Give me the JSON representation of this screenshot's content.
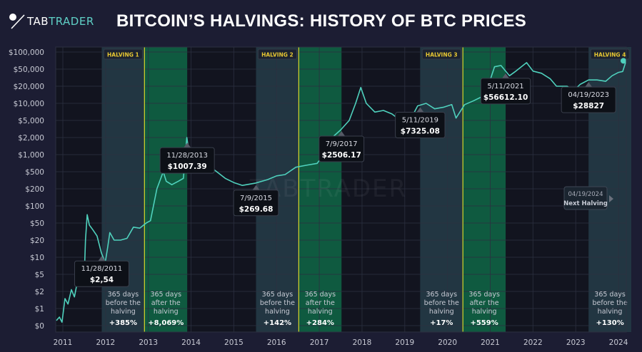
{
  "header": {
    "logo_prefix": "TAB",
    "logo_suffix": "TRADER",
    "title": "BITCOIN’S HALVINGS: HISTORY OF BTC PRICES"
  },
  "watermark": "TABTRADER",
  "colors": {
    "background": "#1c1d33",
    "plot_background": "#12141f",
    "grid": "#2c3040",
    "price_line": "#4fd1bd",
    "before_band": "#223642",
    "after_band": "#0f5a40",
    "halving_line": "#d6d62a",
    "halving_label": "#e8c832"
  },
  "chart_data": {
    "type": "line",
    "title": "BITCOIN’S HALVINGS: HISTORY OF BTC PRICES",
    "xlabel": "",
    "ylabel": "",
    "y_scale": "log (1-2-5 ticks)",
    "grid": true,
    "xlim": [
      2010.83,
      2024.18
    ],
    "x_ticks": [
      "2011",
      "2012",
      "2013",
      "2014",
      "2015",
      "2016",
      "2017",
      "2018",
      "2019",
      "2020",
      "2021",
      "2022",
      "2023",
      "2024"
    ],
    "y_ticks": [
      {
        "value": 0,
        "label": "$0"
      },
      {
        "value": 1,
        "label": "$1"
      },
      {
        "value": 2,
        "label": "$2"
      },
      {
        "value": 5,
        "label": "$5"
      },
      {
        "value": 10,
        "label": "$10"
      },
      {
        "value": 20,
        "label": "$20"
      },
      {
        "value": 50,
        "label": "$50"
      },
      {
        "value": 100,
        "label": "$100"
      },
      {
        "value": 200,
        "label": "$200"
      },
      {
        "value": 500,
        "label": "$500"
      },
      {
        "value": 1000,
        "label": "$1,000"
      },
      {
        "value": 2000,
        "label": "$2,000"
      },
      {
        "value": 5000,
        "label": "$5,000"
      },
      {
        "value": 10000,
        "label": "$10,000"
      },
      {
        "value": 20000,
        "label": "$20,000"
      },
      {
        "value": 50000,
        "label": "$50,000"
      },
      {
        "value": 100000,
        "label": "$100,000"
      }
    ],
    "series": [
      {
        "x": [
          2010.85,
          2010.92,
          2010.98,
          2011.05,
          2011.12,
          2011.2,
          2011.27,
          2011.33,
          2011.4,
          2011.45,
          2011.5,
          2011.53,
          2011.57,
          2011.62,
          2011.7,
          2011.8,
          2011.9,
          2011.99,
          2012.05,
          2012.1,
          2012.2,
          2012.35,
          2012.5,
          2012.65,
          2012.8,
          2012.95,
          2013.05,
          2013.2,
          2013.35,
          2013.42,
          2013.55,
          2013.7,
          2013.82,
          2013.9,
          2013.95,
          2014.05,
          2014.2,
          2014.4,
          2014.6,
          2014.8,
          2015.0,
          2015.2,
          2015.5,
          2015.8,
          2016.0,
          2016.2,
          2016.45,
          2016.7,
          2016.95,
          2017.1,
          2017.3,
          2017.5,
          2017.7,
          2017.85,
          2017.97,
          2018.1,
          2018.3,
          2018.5,
          2018.7,
          2018.9,
          2019.0,
          2019.1,
          2019.3,
          2019.5,
          2019.7,
          2019.9,
          2020.1,
          2020.2,
          2020.4,
          2020.6,
          2020.8,
          2020.95,
          2021.1,
          2021.25,
          2021.45,
          2021.6,
          2021.85,
          2022.0,
          2022.2,
          2022.4,
          2022.55,
          2022.8,
          2022.95,
          2023.1,
          2023.3,
          2023.5,
          2023.7,
          2023.85,
          2024.0,
          2024.1,
          2024.18
        ],
        "y": [
          0.3,
          0.5,
          0.2,
          1.5,
          1.2,
          2.2,
          1.6,
          3,
          6,
          5,
          4,
          20,
          70,
          45,
          35,
          25,
          12,
          8,
          15,
          30,
          20,
          20,
          22,
          40,
          38,
          50,
          55,
          200,
          500,
          300,
          250,
          300,
          350,
          2000,
          1100,
          1000,
          700,
          650,
          500,
          350,
          280,
          240,
          270,
          330,
          400,
          430,
          600,
          650,
          700,
          1000,
          2000,
          3000,
          5000,
          10000,
          19000,
          10000,
          7000,
          7500,
          6500,
          5000,
          4000,
          4500,
          9000,
          10000,
          8000,
          8500,
          9500,
          5500,
          9500,
          11000,
          13000,
          20000,
          55000,
          58000,
          35000,
          45000,
          65000,
          45000,
          40000,
          30000,
          20000,
          20000,
          16500,
          22000,
          28000,
          28000,
          26000,
          35000,
          42000,
          44000,
          70000
        ]
      }
    ],
    "halvings": [
      {
        "label": "HALVING 1",
        "date": 2012.91,
        "before_start": 2011.91,
        "after_end": 2013.91,
        "before_text": [
          "365 days",
          "before the",
          "halving"
        ],
        "before_pct": "+385%",
        "after_text": [
          "365 days",
          "after the",
          "halving"
        ],
        "after_pct": "+8,069%"
      },
      {
        "label": "HALVING 2",
        "date": 2016.52,
        "before_start": 2015.52,
        "after_end": 2017.52,
        "before_text": [
          "365 days",
          "before the",
          "halving"
        ],
        "before_pct": "+142%",
        "after_text": [
          "365 days",
          "after the",
          "halving"
        ],
        "after_pct": "+284%"
      },
      {
        "label": "HALVING 3",
        "date": 2020.36,
        "before_start": 2019.36,
        "after_end": 2021.36,
        "before_text": [
          "365 days",
          "before the",
          "halving"
        ],
        "before_pct": "+17%",
        "after_text": [
          "365 days",
          "after the",
          "halving"
        ],
        "after_pct": "+559%"
      },
      {
        "label": "HALVING 4",
        "date": 2024.3,
        "before_start": 2023.3,
        "after_end": 2024.18,
        "before_text": [
          "365 days",
          "before the",
          "halving"
        ],
        "before_pct": "+130%",
        "after_text": [],
        "after_pct": ""
      }
    ],
    "annotations": [
      {
        "date_label": "11/28/2011",
        "value_label": "$2,54",
        "x": 2011.91
      },
      {
        "date_label": "11/28/2013",
        "value_label": "$1007.39",
        "x": 2013.91
      },
      {
        "date_label": "7/9/2015",
        "value_label": "$269.68",
        "x": 2015.52
      },
      {
        "date_label": "7/9/2017",
        "value_label": "$2506.17",
        "x": 2017.52
      },
      {
        "date_label": "5/11/2019",
        "value_label": "$7325.08",
        "x": 2019.36
      },
      {
        "date_label": "5/11/2021",
        "value_label": "$56612.10",
        "x": 2021.36
      },
      {
        "date_label": "04/19/2023",
        "value_label": "$28827",
        "x": 2023.3
      }
    ],
    "next_halving": {
      "date_label": "04/19/2024",
      "text": "Next Halving"
    }
  }
}
